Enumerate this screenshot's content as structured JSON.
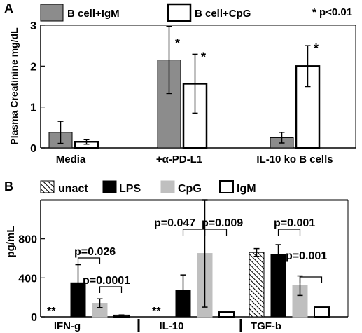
{
  "colors": {
    "igm_fill_a": "#8c8c8c",
    "cpg_fill_a": "#ffffff",
    "lps_fill": "#000000",
    "cpg_fill_b": "#bfbfbf",
    "igm_fill_b": "#ffffff",
    "unact_hatch": "#000000"
  },
  "chart_data": [
    {
      "panel_label": "A",
      "type": "bar",
      "ylabel": "Plasma Creatinine mg/dL",
      "ylim": [
        0,
        3
      ],
      "yticks": [
        0,
        1,
        2,
        3
      ],
      "categories": [
        "Media",
        "+α-PD-L1",
        "IL-10 ko B cells"
      ],
      "series": [
        {
          "name": "B cell+IgM",
          "values": [
            0.38,
            2.15,
            0.25
          ],
          "errors": [
            0.27,
            0.82,
            0.13
          ],
          "stars": [
            "",
            "*",
            ""
          ],
          "color": "#8c8c8c"
        },
        {
          "name": "B cell+CpG",
          "values": [
            0.15,
            1.57,
            2.0
          ],
          "errors": [
            0.06,
            0.72,
            0.5
          ],
          "stars": [
            "",
            "*",
            "*"
          ],
          "color": "#ffffff"
        }
      ],
      "legend_position": "top",
      "annotation": "* p<0.01",
      "grid": false
    },
    {
      "panel_label": "B",
      "type": "bar",
      "ylabel": "pg/mL",
      "ylim": [
        0,
        1200
      ],
      "yticks": [
        0,
        400,
        800
      ],
      "categories": [
        "IFN-g",
        "IL-10",
        "TGF-b"
      ],
      "series": [
        {
          "name": "unact",
          "values": [
            0,
            0,
            660
          ],
          "errors": [
            0,
            0,
            40
          ],
          "pattern": "hatch"
        },
        {
          "name": "LPS",
          "values": [
            350,
            270,
            640
          ],
          "errors": [
            185,
            160,
            100
          ],
          "color": "#000000"
        },
        {
          "name": "CpG",
          "values": [
            140,
            650,
            320
          ],
          "errors": [
            45,
            550,
            100
          ],
          "color": "#bfbfbf"
        },
        {
          "name": "IgM",
          "values": [
            15,
            50,
            100
          ],
          "errors": [
            5,
            0,
            0
          ],
          "color": "#ffffff"
        }
      ],
      "significance": [
        {
          "category": "IFN-g",
          "left_series": "LPS",
          "right_series": "CpG",
          "text": "p=0.026"
        },
        {
          "category": "IFN-g",
          "left_series": "CpG",
          "right_series": "IgM",
          "text": "p=0.0001"
        },
        {
          "category": "IL-10",
          "left_series": "LPS",
          "right_series": "CpG",
          "text": "p=0.047"
        },
        {
          "category": "IL-10",
          "left_series": "CpG",
          "right_series": "IgM",
          "text": "p=0.009"
        },
        {
          "category": "TGF-b",
          "left_series": "LPS",
          "right_series": "CpG",
          "text": "p=0.001"
        },
        {
          "category": "TGF-b",
          "left_series": "CpG",
          "right_series": "IgM",
          "text": "p=0.001"
        }
      ],
      "missing_markers": [
        {
          "category": "IFN-g",
          "text": "**"
        },
        {
          "category": "IL-10",
          "text": "**"
        }
      ],
      "legend_position": "top",
      "grid": false
    }
  ]
}
